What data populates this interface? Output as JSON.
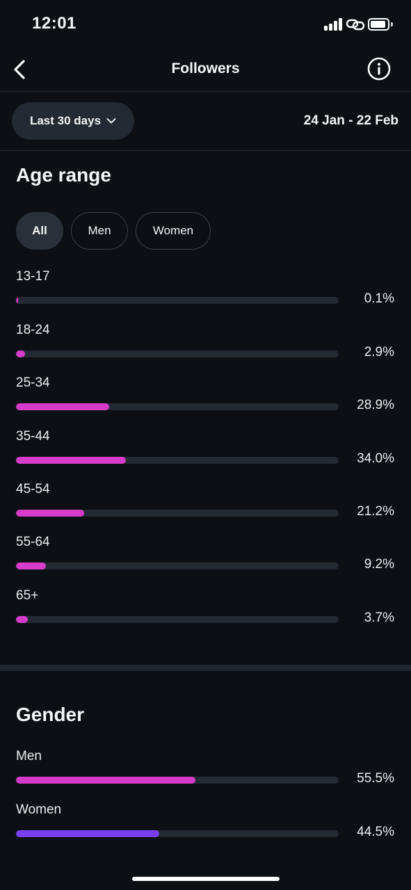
{
  "status_bar": {
    "time": "12:01"
  },
  "header": {
    "title": "Followers",
    "back_icon": "chevron-left-icon",
    "info_icon": "info-icon"
  },
  "filter": {
    "period_label": "Last 30 days",
    "date_range": "24 Jan - 22 Feb"
  },
  "age_section": {
    "title": "Age range",
    "chips": [
      {
        "label": "All",
        "selected": true
      },
      {
        "label": "Men",
        "selected": false
      },
      {
        "label": "Women",
        "selected": false
      }
    ],
    "bar_color": "#d63cc9",
    "rows": [
      {
        "label": "13-17",
        "value": "0.1%",
        "fraction": 0.001
      },
      {
        "label": "18-24",
        "value": "2.9%",
        "fraction": 0.029
      },
      {
        "label": "25-34",
        "value": "28.9%",
        "fraction": 0.289
      },
      {
        "label": "35-44",
        "value": "34.0%",
        "fraction": 0.34
      },
      {
        "label": "45-54",
        "value": "21.2%",
        "fraction": 0.212
      },
      {
        "label": "55-64",
        "value": "9.2%",
        "fraction": 0.092
      },
      {
        "label": "65+",
        "value": "3.7%",
        "fraction": 0.037
      }
    ]
  },
  "gender_section": {
    "title": "Gender",
    "rows": [
      {
        "label": "Men",
        "value": "55.5%",
        "fraction": 0.555,
        "color": "#d63cc9"
      },
      {
        "label": "Women",
        "value": "44.5%",
        "fraction": 0.445,
        "color": "#7b3ff2"
      }
    ]
  }
}
